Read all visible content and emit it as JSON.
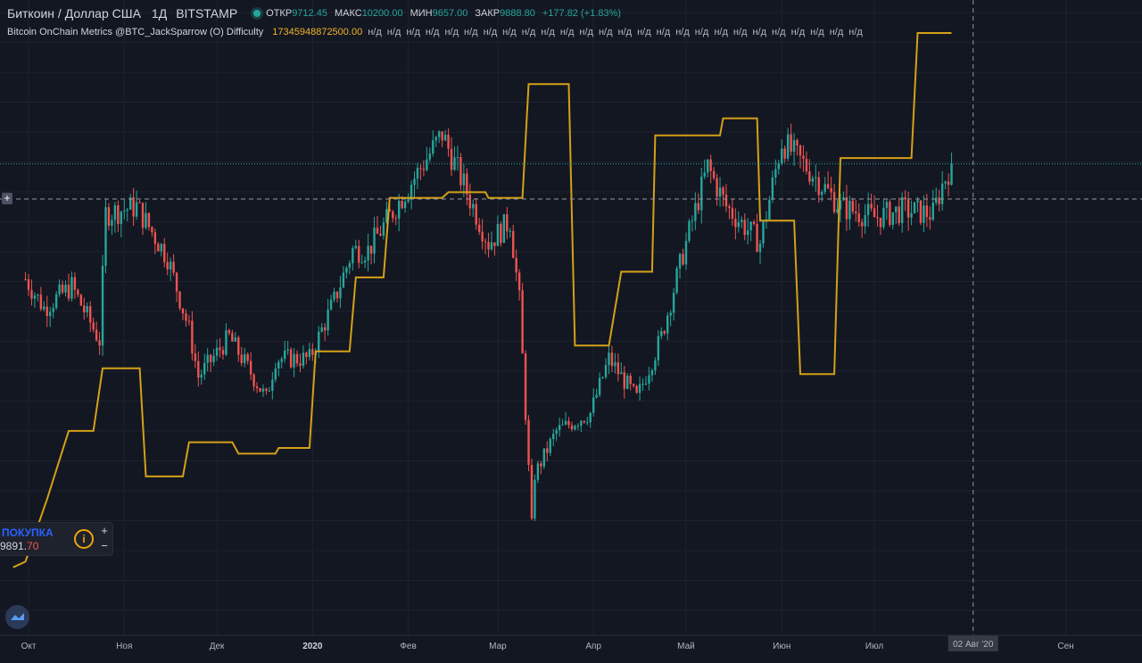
{
  "header": {
    "symbol": "Биткоин / Доллар США",
    "interval": "1Д",
    "exchange": "BITSTAMP",
    "ohlc": [
      {
        "label": "ОТКР",
        "value": "9712.45"
      },
      {
        "label": "МАКС",
        "value": "10200.00"
      },
      {
        "label": "МИН",
        "value": "9657.00"
      },
      {
        "label": "ЗАКР",
        "value": "9888.80"
      }
    ],
    "change": "+177.82 (+1.83%)"
  },
  "indicator": {
    "name": "Bitcoin OnChain Metrics @BTC_JackSparrow (O) Difficulty",
    "value": "17345948872500.00",
    "na_label": "н/д",
    "na_count": 26
  },
  "trade_panel": {
    "buy_label": "ПОКУПКА",
    "price_main": "9891.",
    "price_decimals": "70",
    "info_symbol": "i",
    "plus": "+",
    "minus": "−"
  },
  "crosshair": {
    "plus_symbol": "+",
    "date_label": "02 Авг '20"
  },
  "colors": {
    "background": "#131722",
    "grid": "#1e2230",
    "up": "#26a69a",
    "down": "#ef5350",
    "indicator": "#d4a017"
  },
  "chart_data": {
    "type": "candlestick",
    "price_range_estimate": [
      3800,
      10550
    ],
    "x_ticks": [
      "Окт",
      "Ноя",
      "Дек",
      "2020",
      "Фев",
      "Мар",
      "Апр",
      "Май",
      "Июн",
      "Июл",
      "Сен"
    ],
    "last_close_line": 9888.8,
    "close_path": [
      {
        "date": "2019-09-30",
        "close": 8300
      },
      {
        "date": "2019-10-06",
        "close": 7900
      },
      {
        "date": "2019-10-15",
        "close": 8200
      },
      {
        "date": "2019-10-24",
        "close": 7450
      },
      {
        "date": "2019-10-26",
        "close": 9200
      },
      {
        "date": "2019-11-05",
        "close": 9300
      },
      {
        "date": "2019-11-15",
        "close": 8600
      },
      {
        "date": "2019-11-22",
        "close": 7600
      },
      {
        "date": "2019-11-25",
        "close": 6950
      },
      {
        "date": "2019-12-05",
        "close": 7500
      },
      {
        "date": "2019-12-17",
        "close": 6650
      },
      {
        "date": "2019-12-20",
        "close": 7200
      },
      {
        "date": "2019-12-31",
        "close": 7200
      },
      {
        "date": "2020-01-08",
        "close": 8000
      },
      {
        "date": "2020-01-14",
        "close": 8700
      },
      {
        "date": "2020-01-19",
        "close": 8700
      },
      {
        "date": "2020-01-28",
        "close": 9300
      },
      {
        "date": "2020-02-12",
        "close": 10300
      },
      {
        "date": "2020-02-19",
        "close": 9600
      },
      {
        "date": "2020-02-27",
        "close": 8800
      },
      {
        "date": "2020-03-05",
        "close": 9100
      },
      {
        "date": "2020-03-08",
        "close": 8000
      },
      {
        "date": "2020-03-12",
        "close": 4900
      },
      {
        "date": "2020-03-13",
        "close": 5600
      },
      {
        "date": "2020-03-20",
        "close": 6200
      },
      {
        "date": "2020-03-31",
        "close": 6450
      },
      {
        "date": "2020-04-06",
        "close": 7200
      },
      {
        "date": "2020-04-15",
        "close": 6650
      },
      {
        "date": "2020-04-23",
        "close": 7500
      },
      {
        "date": "2020-04-30",
        "close": 8650
      },
      {
        "date": "2020-05-08",
        "close": 9850
      },
      {
        "date": "2020-05-14",
        "close": 9300
      },
      {
        "date": "2020-05-25",
        "close": 8800
      },
      {
        "date": "2020-06-01",
        "close": 10200
      },
      {
        "date": "2020-06-10",
        "close": 9800
      },
      {
        "date": "2020-06-20",
        "close": 9300
      },
      {
        "date": "2020-07-01",
        "close": 9150
      },
      {
        "date": "2020-07-10",
        "close": 9250
      },
      {
        "date": "2020-07-20",
        "close": 9200
      },
      {
        "date": "2020-07-23",
        "close": 9600
      },
      {
        "date": "2020-07-26",
        "close": 9888.8
      }
    ],
    "difficulty_steps": [
      {
        "date": "2019-09-26",
        "difficulty": 0.06
      },
      {
        "date": "2019-09-30",
        "difficulty": 0.07
      },
      {
        "date": "2019-10-07",
        "difficulty": 0.18
      },
      {
        "date": "2019-10-14",
        "difficulty": 0.3
      },
      {
        "date": "2019-10-22",
        "difficulty": 0.3
      },
      {
        "date": "2019-10-25",
        "difficulty": 0.41
      },
      {
        "date": "2019-11-06",
        "difficulty": 0.41
      },
      {
        "date": "2019-11-08",
        "difficulty": 0.22
      },
      {
        "date": "2019-11-20",
        "difficulty": 0.22
      },
      {
        "date": "2019-11-22",
        "difficulty": 0.28
      },
      {
        "date": "2019-12-06",
        "difficulty": 0.28
      },
      {
        "date": "2019-12-08",
        "difficulty": 0.26
      },
      {
        "date": "2019-12-20",
        "difficulty": 0.26
      },
      {
        "date": "2019-12-21",
        "difficulty": 0.27
      },
      {
        "date": "2019-12-31",
        "difficulty": 0.27
      },
      {
        "date": "2020-01-02",
        "difficulty": 0.44
      },
      {
        "date": "2020-01-13",
        "difficulty": 0.44
      },
      {
        "date": "2020-01-15",
        "difficulty": 0.57
      },
      {
        "date": "2020-01-24",
        "difficulty": 0.57
      },
      {
        "date": "2020-01-26",
        "difficulty": 0.71
      },
      {
        "date": "2020-02-12",
        "difficulty": 0.71
      },
      {
        "date": "2020-02-14",
        "difficulty": 0.72
      },
      {
        "date": "2020-02-26",
        "difficulty": 0.72
      },
      {
        "date": "2020-02-27",
        "difficulty": 0.71
      },
      {
        "date": "2020-03-09",
        "difficulty": 0.71
      },
      {
        "date": "2020-03-11",
        "difficulty": 0.91
      },
      {
        "date": "2020-03-24",
        "difficulty": 0.91
      },
      {
        "date": "2020-03-26",
        "difficulty": 0.45
      },
      {
        "date": "2020-04-06",
        "difficulty": 0.45
      },
      {
        "date": "2020-04-10",
        "difficulty": 0.58
      },
      {
        "date": "2020-04-20",
        "difficulty": 0.58
      },
      {
        "date": "2020-04-21",
        "difficulty": 0.82
      },
      {
        "date": "2020-05-12",
        "difficulty": 0.82
      },
      {
        "date": "2020-05-13",
        "difficulty": 0.85
      },
      {
        "date": "2020-05-24",
        "difficulty": 0.85
      },
      {
        "date": "2020-05-25",
        "difficulty": 0.67
      },
      {
        "date": "2020-06-05",
        "difficulty": 0.67
      },
      {
        "date": "2020-06-07",
        "difficulty": 0.4
      },
      {
        "date": "2020-06-18",
        "difficulty": 0.4
      },
      {
        "date": "2020-06-20",
        "difficulty": 0.78
      },
      {
        "date": "2020-07-13",
        "difficulty": 0.78
      },
      {
        "date": "2020-07-15",
        "difficulty": 1.0
      },
      {
        "date": "2020-07-26",
        "difficulty": 1.0
      }
    ]
  }
}
